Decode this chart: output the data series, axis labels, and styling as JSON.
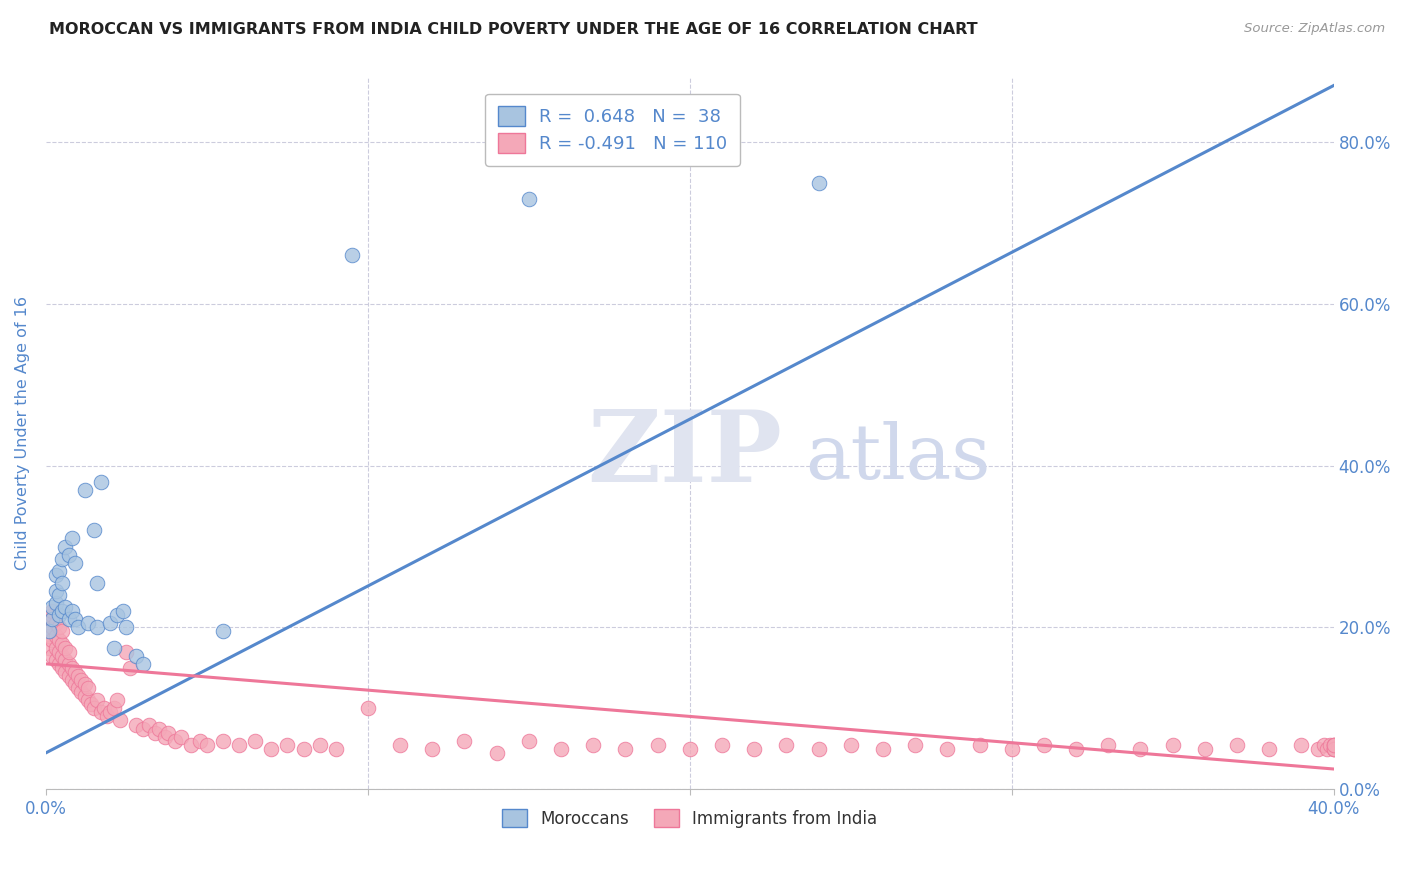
{
  "title": "MOROCCAN VS IMMIGRANTS FROM INDIA CHILD POVERTY UNDER THE AGE OF 16 CORRELATION CHART",
  "source": "Source: ZipAtlas.com",
  "ylabel": "Child Poverty Under the Age of 16",
  "legend_blue_r": "0.648",
  "legend_blue_n": "38",
  "legend_pink_r": "-0.491",
  "legend_pink_n": "110",
  "legend_blue_label": "Moroccans",
  "legend_pink_label": "Immigrants from India",
  "blue_color": "#A8C4E0",
  "pink_color": "#F4A8B8",
  "line_blue": "#5588CC",
  "line_pink": "#EE7799",
  "text_color": "#5588CC",
  "bg_color": "#FFFFFF",
  "grid_color": "#CCCCDD",
  "xmin": 0.0,
  "xmax": 0.4,
  "ymin": 0.0,
  "ymax": 0.88,
  "yticks": [
    0.0,
    0.2,
    0.4,
    0.6,
    0.8
  ],
  "xtick_left_label": "0.0%",
  "xtick_right_label": "40.0%",
  "blue_scatter_x": [
    0.001,
    0.002,
    0.002,
    0.003,
    0.003,
    0.003,
    0.004,
    0.004,
    0.004,
    0.005,
    0.005,
    0.005,
    0.006,
    0.006,
    0.007,
    0.007,
    0.008,
    0.008,
    0.009,
    0.009,
    0.01,
    0.012,
    0.013,
    0.015,
    0.016,
    0.016,
    0.017,
    0.02,
    0.021,
    0.022,
    0.024,
    0.025,
    0.028,
    0.03,
    0.055,
    0.095,
    0.15,
    0.24
  ],
  "blue_scatter_y": [
    0.195,
    0.21,
    0.225,
    0.23,
    0.245,
    0.265,
    0.215,
    0.24,
    0.27,
    0.22,
    0.255,
    0.285,
    0.225,
    0.3,
    0.21,
    0.29,
    0.22,
    0.31,
    0.21,
    0.28,
    0.2,
    0.37,
    0.205,
    0.32,
    0.2,
    0.255,
    0.38,
    0.205,
    0.175,
    0.215,
    0.22,
    0.2,
    0.165,
    0.155,
    0.195,
    0.66,
    0.73,
    0.75
  ],
  "pink_scatter_x": [
    0.001,
    0.001,
    0.001,
    0.002,
    0.002,
    0.002,
    0.002,
    0.002,
    0.003,
    0.003,
    0.003,
    0.003,
    0.004,
    0.004,
    0.004,
    0.004,
    0.005,
    0.005,
    0.005,
    0.005,
    0.006,
    0.006,
    0.006,
    0.007,
    0.007,
    0.007,
    0.008,
    0.008,
    0.009,
    0.009,
    0.01,
    0.01,
    0.011,
    0.011,
    0.012,
    0.012,
    0.013,
    0.013,
    0.014,
    0.015,
    0.016,
    0.017,
    0.018,
    0.019,
    0.02,
    0.021,
    0.022,
    0.023,
    0.025,
    0.026,
    0.028,
    0.03,
    0.032,
    0.034,
    0.035,
    0.037,
    0.038,
    0.04,
    0.042,
    0.045,
    0.048,
    0.05,
    0.055,
    0.06,
    0.065,
    0.07,
    0.075,
    0.08,
    0.085,
    0.09,
    0.1,
    0.11,
    0.12,
    0.13,
    0.14,
    0.15,
    0.16,
    0.17,
    0.18,
    0.19,
    0.2,
    0.21,
    0.22,
    0.23,
    0.24,
    0.25,
    0.26,
    0.27,
    0.28,
    0.29,
    0.3,
    0.31,
    0.32,
    0.33,
    0.34,
    0.35,
    0.36,
    0.37,
    0.38,
    0.39,
    0.395,
    0.397,
    0.398,
    0.399,
    0.4,
    0.4,
    0.4,
    0.4,
    0.4,
    0.4
  ],
  "pink_scatter_y": [
    0.175,
    0.19,
    0.21,
    0.165,
    0.185,
    0.2,
    0.215,
    0.22,
    0.16,
    0.175,
    0.19,
    0.205,
    0.155,
    0.17,
    0.185,
    0.2,
    0.15,
    0.165,
    0.18,
    0.195,
    0.145,
    0.16,
    0.175,
    0.14,
    0.155,
    0.17,
    0.135,
    0.15,
    0.13,
    0.145,
    0.125,
    0.14,
    0.12,
    0.135,
    0.115,
    0.13,
    0.11,
    0.125,
    0.105,
    0.1,
    0.11,
    0.095,
    0.1,
    0.09,
    0.095,
    0.1,
    0.11,
    0.085,
    0.17,
    0.15,
    0.08,
    0.075,
    0.08,
    0.07,
    0.075,
    0.065,
    0.07,
    0.06,
    0.065,
    0.055,
    0.06,
    0.055,
    0.06,
    0.055,
    0.06,
    0.05,
    0.055,
    0.05,
    0.055,
    0.05,
    0.1,
    0.055,
    0.05,
    0.06,
    0.045,
    0.06,
    0.05,
    0.055,
    0.05,
    0.055,
    0.05,
    0.055,
    0.05,
    0.055,
    0.05,
    0.055,
    0.05,
    0.055,
    0.05,
    0.055,
    0.05,
    0.055,
    0.05,
    0.055,
    0.05,
    0.055,
    0.05,
    0.055,
    0.05,
    0.055,
    0.05,
    0.055,
    0.05,
    0.055,
    0.05,
    0.055,
    0.05,
    0.055,
    0.05,
    0.055
  ],
  "blue_line_x": [
    0.0,
    0.4
  ],
  "blue_line_y": [
    0.045,
    0.87
  ],
  "pink_line_x": [
    0.0,
    0.4
  ],
  "pink_line_y": [
    0.155,
    0.025
  ]
}
